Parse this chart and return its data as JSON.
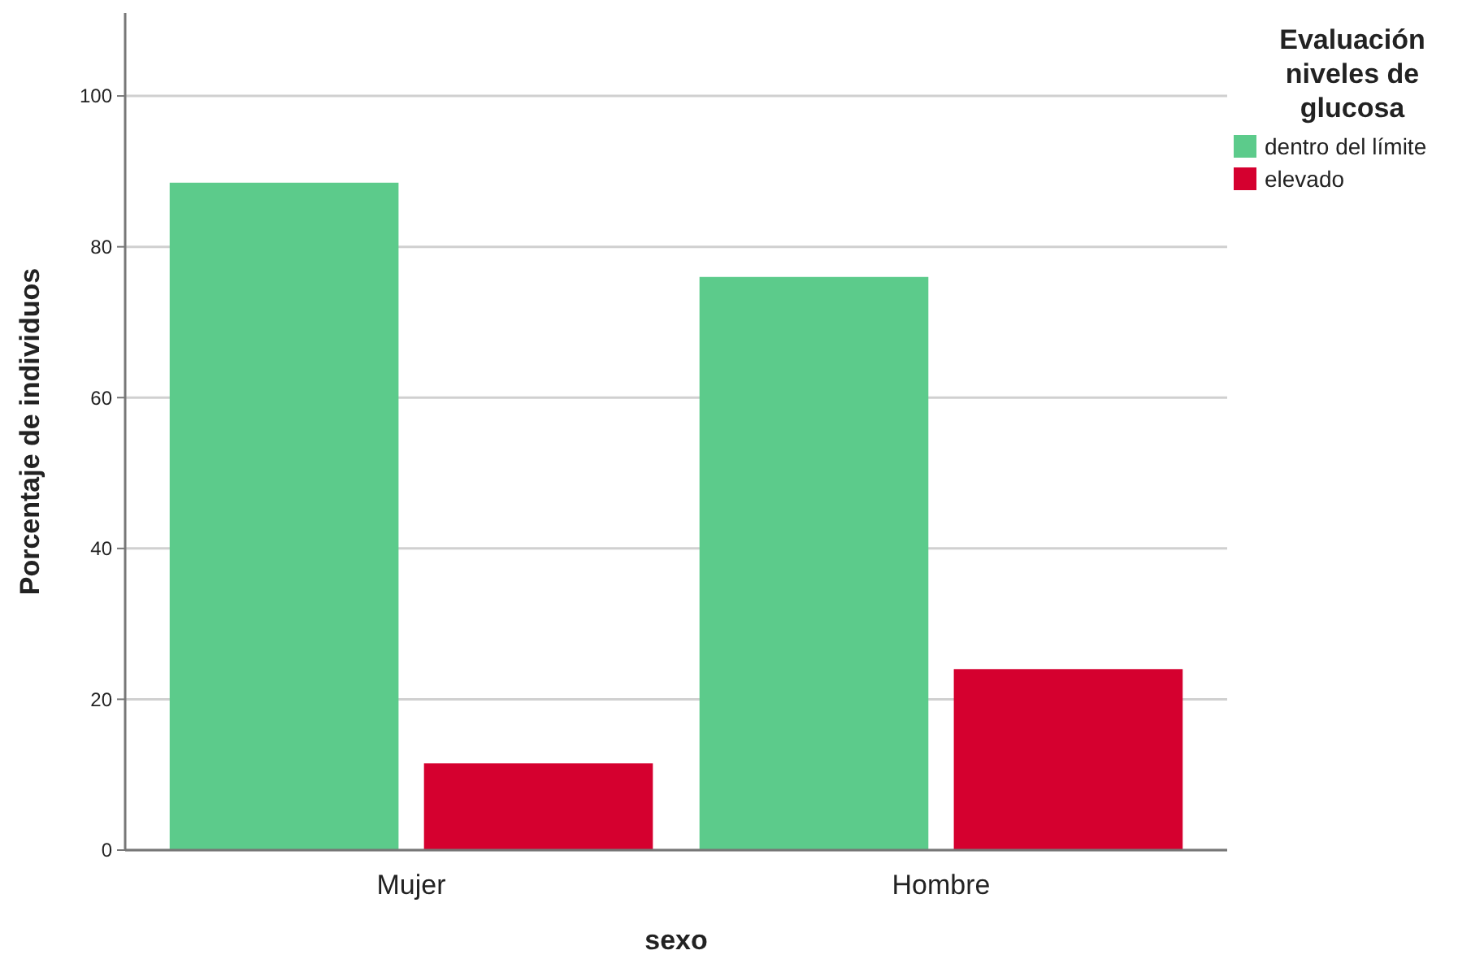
{
  "chart_data": {
    "type": "bar",
    "xlabel": "sexo",
    "ylabel": "Porcentaje de individuos",
    "legend_title": "Evaluación niveles de glucosa",
    "categories": [
      "Mujer",
      "Hombre"
    ],
    "series": [
      {
        "name": "dentro del límite",
        "color": "#5ccb8b",
        "values": [
          88.5,
          76
        ]
      },
      {
        "name": "elevado",
        "color": "#d5002f",
        "values": [
          11.5,
          24
        ]
      }
    ],
    "ylim": [
      0,
      111
    ],
    "yticks": [
      0,
      20,
      40,
      60,
      80,
      100
    ],
    "grid": "y",
    "legend": "top right"
  }
}
